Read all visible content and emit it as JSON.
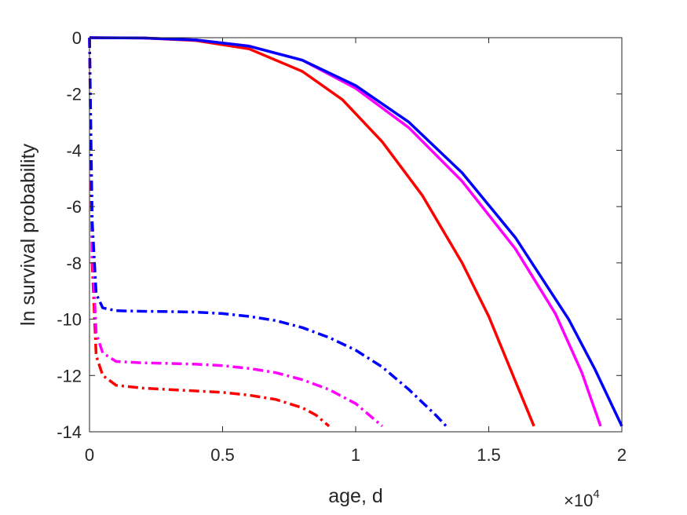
{
  "chart_data": {
    "type": "line",
    "xlabel": "age, d",
    "ylabel": "ln survival probability",
    "x_multiplier_base": "×10",
    "x_multiplier_exp": "4",
    "xlim": [
      0,
      20000
    ],
    "ylim": [
      -14,
      0
    ],
    "xticks": [
      0,
      5000,
      10000,
      15000,
      20000
    ],
    "xtick_labels": [
      "0",
      "0.5",
      "1",
      "1.5",
      "2"
    ],
    "yticks": [
      0,
      -2,
      -4,
      -6,
      -8,
      -10,
      -12,
      -14
    ],
    "ytick_labels": [
      "0",
      "-2",
      "-4",
      "-6",
      "-8",
      "-10",
      "-12",
      "-14"
    ],
    "grid": false,
    "legend": "none",
    "series": [
      {
        "color": "#ff0000",
        "style": "solid",
        "points": [
          [
            0,
            0
          ],
          [
            2000,
            -0.01
          ],
          [
            4000,
            -0.1
          ],
          [
            6000,
            -0.4
          ],
          [
            8000,
            -1.2
          ],
          [
            9500,
            -2.2
          ],
          [
            11000,
            -3.7
          ],
          [
            12500,
            -5.6
          ],
          [
            14000,
            -8.0
          ],
          [
            15000,
            -9.9
          ],
          [
            16000,
            -12.2
          ],
          [
            16700,
            -13.8
          ]
        ]
      },
      {
        "color": "#ff00ff",
        "style": "solid",
        "points": [
          [
            0,
            0
          ],
          [
            2000,
            -0.01
          ],
          [
            4000,
            -0.08
          ],
          [
            6000,
            -0.3
          ],
          [
            8000,
            -0.8
          ],
          [
            10000,
            -1.8
          ],
          [
            12000,
            -3.2
          ],
          [
            14000,
            -5.1
          ],
          [
            16000,
            -7.5
          ],
          [
            17500,
            -9.8
          ],
          [
            18500,
            -11.9
          ],
          [
            19200,
            -13.8
          ]
        ]
      },
      {
        "color": "#0000ff",
        "style": "solid",
        "points": [
          [
            0,
            0
          ],
          [
            2000,
            -0.01
          ],
          [
            4000,
            -0.08
          ],
          [
            6000,
            -0.3
          ],
          [
            8000,
            -0.8
          ],
          [
            10000,
            -1.7
          ],
          [
            12000,
            -3.0
          ],
          [
            14000,
            -4.8
          ],
          [
            16000,
            -7.1
          ],
          [
            18000,
            -10.0
          ],
          [
            19000,
            -11.8
          ],
          [
            20000,
            -13.8
          ]
        ]
      },
      {
        "color": "#ff0000",
        "style": "dashdot",
        "points": [
          [
            0,
            0
          ],
          [
            100,
            -8
          ],
          [
            250,
            -11.3
          ],
          [
            500,
            -12.0
          ],
          [
            1000,
            -12.35
          ],
          [
            2000,
            -12.45
          ],
          [
            3000,
            -12.5
          ],
          [
            4000,
            -12.55
          ],
          [
            5000,
            -12.6
          ],
          [
            6000,
            -12.7
          ],
          [
            7000,
            -12.85
          ],
          [
            8000,
            -13.15
          ],
          [
            8500,
            -13.4
          ],
          [
            9000,
            -13.8
          ]
        ]
      },
      {
        "color": "#ff00ff",
        "style": "dashdot",
        "points": [
          [
            0,
            0
          ],
          [
            100,
            -7.5
          ],
          [
            250,
            -10.5
          ],
          [
            500,
            -11.2
          ],
          [
            1000,
            -11.5
          ],
          [
            2000,
            -11.55
          ],
          [
            3000,
            -11.57
          ],
          [
            4000,
            -11.6
          ],
          [
            5000,
            -11.65
          ],
          [
            6000,
            -11.75
          ],
          [
            7000,
            -11.9
          ],
          [
            8000,
            -12.15
          ],
          [
            9000,
            -12.5
          ],
          [
            10000,
            -13.0
          ],
          [
            11000,
            -13.8
          ]
        ]
      },
      {
        "color": "#0000ff",
        "style": "dashdot",
        "points": [
          [
            0,
            0
          ],
          [
            100,
            -6.5
          ],
          [
            250,
            -9.1
          ],
          [
            500,
            -9.6
          ],
          [
            1000,
            -9.7
          ],
          [
            2000,
            -9.72
          ],
          [
            3000,
            -9.73
          ],
          [
            4000,
            -9.75
          ],
          [
            5000,
            -9.8
          ],
          [
            6000,
            -9.9
          ],
          [
            7000,
            -10.05
          ],
          [
            8000,
            -10.3
          ],
          [
            9000,
            -10.65
          ],
          [
            10000,
            -11.1
          ],
          [
            11000,
            -11.7
          ],
          [
            12000,
            -12.5
          ],
          [
            13000,
            -13.4
          ],
          [
            13400,
            -13.8
          ]
        ]
      }
    ]
  }
}
